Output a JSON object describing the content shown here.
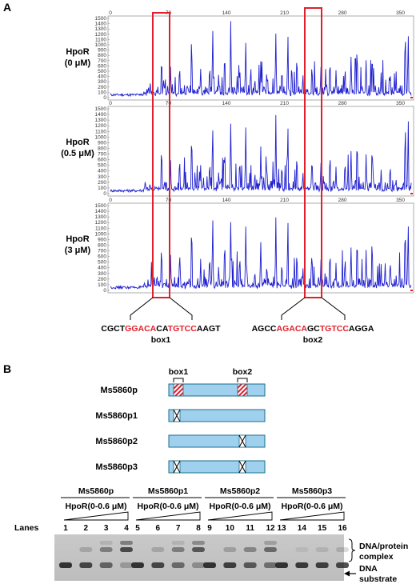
{
  "panel_a": {
    "letter": "A",
    "x_ticks": [
      "0",
      "70",
      "140",
      "210",
      "280",
      "350"
    ],
    "y_ticks": [
      "0",
      "100",
      "200",
      "300",
      "400",
      "500",
      "600",
      "700",
      "800",
      "900",
      "1000",
      "1100",
      "1200",
      "1300",
      "1400",
      "1500"
    ],
    "traces": [
      {
        "label_line1": "HpoR",
        "label_line2": "(0 μM)"
      },
      {
        "label_line1": "HpoR",
        "label_line2": "(0.5 μM)"
      },
      {
        "label_line1": "HpoR",
        "label_line2": "(3 μM)"
      }
    ],
    "box1": {
      "label": "box1",
      "seq": [
        {
          "t": "CGCT",
          "c": "#000000"
        },
        {
          "t": "GGACA",
          "c": "#e0202a"
        },
        {
          "t": "CA",
          "c": "#000000"
        },
        {
          "t": "TGTCC",
          "c": "#e0202a"
        },
        {
          "t": "AAGT",
          "c": "#000000"
        }
      ]
    },
    "box2": {
      "label": "box2",
      "seq": [
        {
          "t": "AGCC",
          "c": "#000000"
        },
        {
          "t": "AGACA",
          "c": "#e0202a"
        },
        {
          "t": "GC",
          "c": "#000000"
        },
        {
          "t": "TGTCC",
          "c": "#e0202a"
        },
        {
          "t": "AGGA",
          "c": "#000000"
        }
      ]
    },
    "trace_color": "#1f1fd0",
    "highlight_color": "#e0202a"
  },
  "panel_b": {
    "letter": "B",
    "box1_label": "box1",
    "box2_label": "box2",
    "constructs": [
      "Ms5860p",
      "Ms5860p1",
      "Ms5860p2",
      "Ms5860p3"
    ],
    "bar_color": "#9fd0ee",
    "gel": {
      "groups": [
        {
          "name": "Ms5860p",
          "condition": "HpoR(0-0.6 μM)"
        },
        {
          "name": "Ms5860p1",
          "condition": "HpoR(0-0.6 μM)"
        },
        {
          "name": "Ms5860p2",
          "condition": "HpoR(0-0.6 μM)"
        },
        {
          "name": "Ms5860p3",
          "condition": "HpoR(0-0.6 μM)"
        }
      ],
      "lanes_label": "Lanes",
      "lanes": [
        "1",
        "2",
        "3",
        "4",
        "5",
        "6",
        "7",
        "8",
        "9",
        "10",
        "11",
        "12",
        "13",
        "14",
        "15",
        "16"
      ],
      "complex_label_line1": "DNA/protein",
      "complex_label_line2": "complex",
      "substrate_label_line1": "DNA",
      "substrate_label_line2": "substrate"
    }
  }
}
